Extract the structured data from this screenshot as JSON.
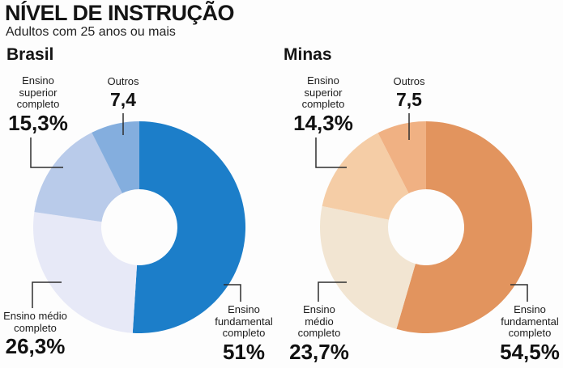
{
  "header": {
    "title": "NÍVEL DE INSTRUÇÃO",
    "subtitle": "Adultos com 25 anos ou mais"
  },
  "charts": [
    {
      "title": "Brasil",
      "labels": [
        {
          "id": "ensino-superior-completo",
          "name": "Ensino\nsuperior\ncompleto",
          "value": "15,3%"
        },
        {
          "id": "outros",
          "name": "Outros",
          "value": "7,4"
        },
        {
          "id": "ensino-medio-completo",
          "name": "Ensino médio\ncompleto",
          "value": "26,3%"
        },
        {
          "id": "ensino-fundamental-completo",
          "name": "Ensino\nfundamental\ncompleto",
          "value": "51%"
        }
      ]
    },
    {
      "title": "Minas",
      "labels": [
        {
          "id": "ensino-superior-completo",
          "name": "Ensino\nsuperior\ncompleto",
          "value": "14,3%"
        },
        {
          "id": "outros",
          "name": "Outros",
          "value": "7,5"
        },
        {
          "id": "ensino-medio-completo",
          "name": "Ensino\nmédio\ncompleto",
          "value": "23,7%"
        },
        {
          "id": "ensino-fundamental-completo",
          "name": "Ensino\nfundamental\ncompleto",
          "value": "54,5%"
        }
      ]
    }
  ],
  "chart_data": [
    {
      "type": "pie",
      "subtype": "donut",
      "title": "Brasil",
      "categories": [
        "Ensino fundamental completo",
        "Ensino médio completo",
        "Ensino superior completo",
        "Outros"
      ],
      "values": [
        51,
        26.3,
        15.3,
        7.4
      ],
      "display_labels": [
        "51%",
        "26,3%",
        "15,3%",
        "7,4"
      ],
      "colors": [
        "#1c7ec9",
        "#e7e9f7",
        "#b9cbea",
        "#84aede"
      ],
      "units": "%",
      "start_angle_deg": 0,
      "direction": "clockwise",
      "hole_ratio": 0.36,
      "legend": "none"
    },
    {
      "type": "pie",
      "subtype": "donut",
      "title": "Minas",
      "categories": [
        "Ensino fundamental completo",
        "Ensino médio completo",
        "Ensino superior completo",
        "Outros"
      ],
      "values": [
        54.5,
        23.7,
        14.3,
        7.5
      ],
      "display_labels": [
        "54,5%",
        "23,7%",
        "14,3%",
        "7,5"
      ],
      "colors": [
        "#e2945e",
        "#f2e5d2",
        "#f5cda6",
        "#f0b183"
      ],
      "units": "%",
      "start_angle_deg": 0,
      "direction": "clockwise",
      "hole_ratio": 0.36,
      "legend": "none"
    }
  ],
  "style": {
    "lead_line_color": "#2e2e2e",
    "text_color": "#1c1c1c",
    "background": "#fdfdfd"
  }
}
